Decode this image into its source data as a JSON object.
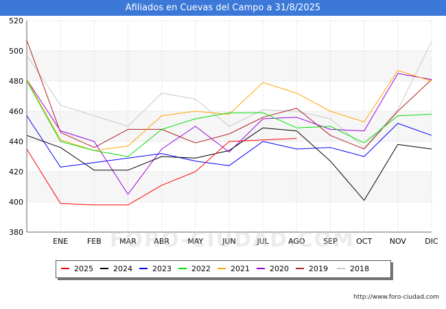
{
  "title": "Afiliados en Cuevas del Campo a 31/8/2025",
  "source": "http://www.foro-ciudad.com",
  "watermark": "FORO-CIUDAD.COM",
  "chart_data": {
    "type": "line",
    "title": "Afiliados en Cuevas del Campo a 31/8/2025",
    "xlabel": "",
    "ylabel": "",
    "categories": [
      "",
      "ENE",
      "FEB",
      "MAR",
      "ABR",
      "MAY",
      "JUN",
      "JUL",
      "AGO",
      "SEP",
      "OCT",
      "NOV",
      "DIC"
    ],
    "ylim": [
      380,
      520
    ],
    "yticks": [
      380,
      400,
      420,
      440,
      460,
      480,
      500,
      520
    ],
    "grid": true,
    "legend_position": "bottom",
    "series": [
      {
        "name": "2025",
        "color": "#ff0000",
        "values": [
          435,
          399,
          398,
          398,
          411,
          420,
          440,
          441,
          442,
          null,
          null,
          null,
          null
        ]
      },
      {
        "name": "2024",
        "color": "#000000",
        "values": [
          444,
          436,
          421,
          421,
          430,
          429,
          434,
          449,
          447,
          427,
          401,
          438,
          435
        ]
      },
      {
        "name": "2023",
        "color": "#0000ff",
        "values": [
          457,
          423,
          426,
          429,
          432,
          427,
          424,
          440,
          435,
          436,
          430,
          452,
          444
        ]
      },
      {
        "name": "2022",
        "color": "#00dd00",
        "values": [
          480,
          440,
          434,
          430,
          448,
          455,
          459,
          459,
          449,
          450,
          439,
          457,
          458
        ]
      },
      {
        "name": "2021",
        "color": "#ffa500",
        "values": [
          481,
          441,
          434,
          437,
          457,
          460,
          458,
          479,
          472,
          460,
          453,
          487,
          480
        ]
      },
      {
        "name": "2020",
        "color": "#9900dd",
        "values": [
          481,
          447,
          440,
          405,
          435,
          450,
          433,
          455,
          456,
          448,
          447,
          485,
          481
        ]
      },
      {
        "name": "2019",
        "color": "#aa2222",
        "values": [
          507,
          446,
          436,
          448,
          448,
          439,
          445,
          456,
          462,
          444,
          435,
          460,
          481
        ]
      },
      {
        "name": "2018",
        "color": "#c8c8c8",
        "values": [
          497,
          464,
          457,
          450,
          472,
          468,
          450,
          461,
          460,
          455,
          436,
          461,
          506
        ]
      }
    ]
  }
}
